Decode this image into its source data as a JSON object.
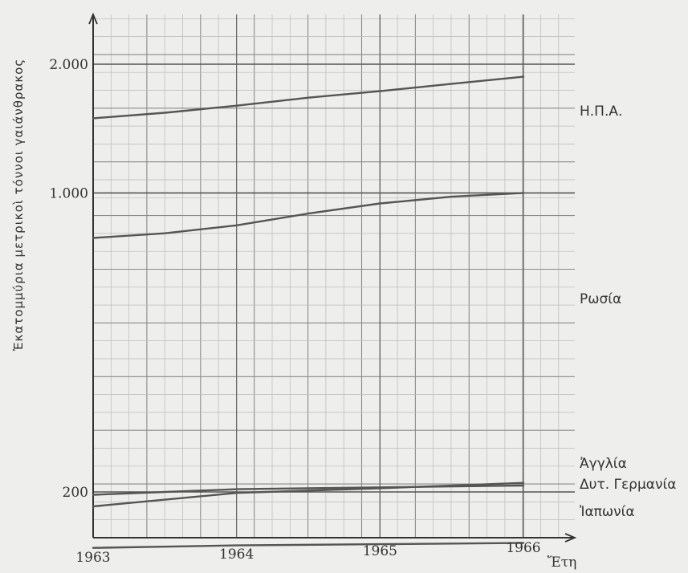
{
  "chart_data": {
    "type": "line",
    "ylabel": "Ἐκατομμύρια μετρικοὶ τόννοι γαιάνθρακος",
    "xlabel": "Ἔτη",
    "x": [
      1963,
      1964,
      1965,
      1966
    ],
    "x_tick_labels": [
      "1963",
      "1964",
      "1965",
      "1966"
    ],
    "y_tick_labels": [
      {
        "value": 200,
        "label": "200"
      },
      {
        "value": 1000,
        "label": "1.000"
      },
      {
        "value": 2000,
        "label": "2.000"
      }
    ],
    "y_scale": "log",
    "ylim": [
      130,
      2200
    ],
    "grid": true,
    "series": [
      {
        "name": "Η.Π.Α.",
        "x": [
          1963,
          1963.5,
          1964,
          1964.5,
          1965,
          1965.5,
          1966
        ],
        "values": [
          1495,
          1540,
          1600,
          1670,
          1730,
          1800,
          1870
        ],
        "color": "#555555"
      },
      {
        "name": "Ρωσία",
        "x": [
          1963,
          1963.5,
          1964,
          1964.5,
          1965,
          1965.5,
          1966
        ],
        "values": [
          785,
          805,
          840,
          895,
          945,
          980,
          1000
        ],
        "color": "#555555"
      },
      {
        "name": "Ἀγγλία",
        "x": [
          1963,
          1964,
          1965,
          1966
        ],
        "values": [
          197,
          203,
          205,
          207
        ],
        "color": "#555555"
      },
      {
        "name": "Δυτ. Γερμανία",
        "x": [
          1963,
          1964,
          1965,
          1966
        ],
        "values": [
          185,
          199,
          204,
          210
        ],
        "color": "#555555"
      },
      {
        "name": "Ἰαπωνία",
        "x": [
          1963,
          1964,
          1965,
          1966
        ],
        "values": [
          148,
          150,
          151,
          152
        ],
        "color": "#555555"
      }
    ]
  }
}
